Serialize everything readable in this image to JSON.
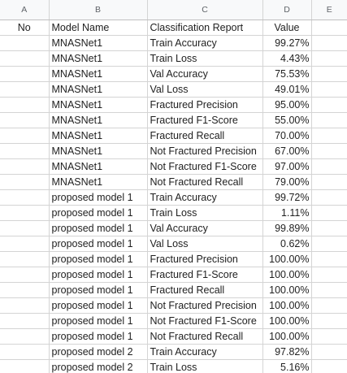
{
  "columns": [
    "A",
    "B",
    "C",
    "D",
    "E"
  ],
  "header_row": {
    "a": "No",
    "b": "Model Name",
    "c": "Classification Report",
    "d": "Value"
  },
  "rows": [
    {
      "model": "MNASNet1",
      "report": "Train Accuracy",
      "value": "99.27%"
    },
    {
      "model": "MNASNet1",
      "report": "Train Loss",
      "value": "4.43%"
    },
    {
      "model": "MNASNet1",
      "report": "Val Accuracy",
      "value": "75.53%"
    },
    {
      "model": "MNASNet1",
      "report": "Val Loss",
      "value": "49.01%"
    },
    {
      "model": "MNASNet1",
      "report": "Fractured Precision",
      "value": "95.00%"
    },
    {
      "model": "MNASNet1",
      "report": "Fractured F1-Score",
      "value": "55.00%"
    },
    {
      "model": "MNASNet1",
      "report": "Fractured Recall",
      "value": "70.00%"
    },
    {
      "model": "MNASNet1",
      "report": "Not Fractured Precision",
      "value": "67.00%"
    },
    {
      "model": "MNASNet1",
      "report": "Not Fractured F1-Score",
      "value": "97.00%"
    },
    {
      "model": "MNASNet1",
      "report": "Not Fractured Recall",
      "value": "79.00%"
    },
    {
      "model": "proposed model 1",
      "report": "Train Accuracy",
      "value": "99.72%"
    },
    {
      "model": "proposed model 1",
      "report": "Train Loss",
      "value": "1.11%"
    },
    {
      "model": "proposed model 1",
      "report": "Val Accuracy",
      "value": "99.89%"
    },
    {
      "model": "proposed model 1",
      "report": "Val Loss",
      "value": "0.62%"
    },
    {
      "model": "proposed model 1",
      "report": "Fractured Precision",
      "value": "100.00%"
    },
    {
      "model": "proposed model 1",
      "report": "Fractured F1-Score",
      "value": "100.00%"
    },
    {
      "model": "proposed model 1",
      "report": "Fractured Recall",
      "value": "100.00%"
    },
    {
      "model": "proposed model 1",
      "report": "Not Fractured Precision",
      "value": "100.00%"
    },
    {
      "model": "proposed model 1",
      "report": "Not Fractured F1-Score",
      "value": "100.00%"
    },
    {
      "model": "proposed model 1",
      "report": "Not Fractured Recall",
      "value": "100.00%"
    },
    {
      "model": "proposed model 2",
      "report": "Train Accuracy",
      "value": "97.82%"
    },
    {
      "model": "proposed model 2",
      "report": "Train Loss",
      "value": "5.16%"
    }
  ]
}
